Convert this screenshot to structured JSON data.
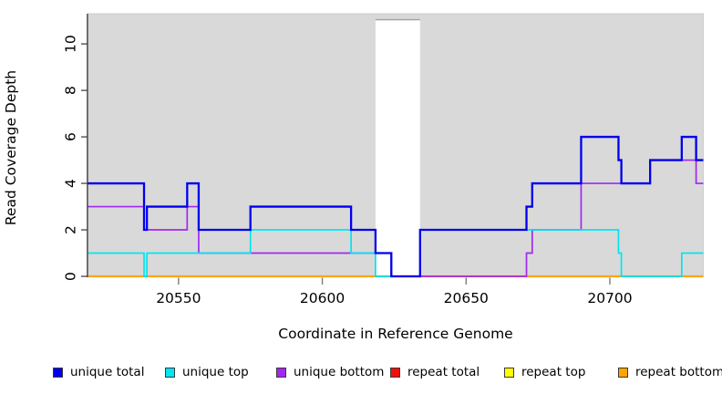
{
  "chart_data": {
    "type": "line",
    "subtype": "step-post",
    "title": "",
    "xlabel": "Coordinate in Reference Genome",
    "ylabel": "Read Coverage Depth",
    "xlim": [
      20518.5,
      20732.5
    ],
    "ylim": [
      0,
      11.3
    ],
    "x_ticks": [
      20550,
      20600,
      20650,
      20700
    ],
    "y_ticks": [
      0,
      2,
      4,
      6,
      8,
      10
    ],
    "grid": false,
    "plot_background": "#d9d9d9",
    "gap_region": {
      "from": 20618.5,
      "to": 20634,
      "top_value": 11,
      "color": "#ffffff"
    },
    "legend_position": "bottom",
    "series": [
      {
        "name": "unique total",
        "color": "#0000ee",
        "line_width": 2.3,
        "steps": [
          [
            20518.5,
            4
          ],
          [
            20538,
            2
          ],
          [
            20539,
            3
          ],
          [
            20553,
            4
          ],
          [
            20557,
            2
          ],
          [
            20575,
            3
          ],
          [
            20610,
            2
          ],
          [
            20618.5,
            1
          ],
          [
            20624,
            0
          ],
          [
            20634,
            2
          ],
          [
            20671,
            3
          ],
          [
            20673,
            4
          ],
          [
            20690,
            6
          ],
          [
            20703,
            5
          ],
          [
            20704,
            4
          ],
          [
            20714,
            5
          ],
          [
            20725,
            6
          ],
          [
            20730,
            5
          ]
        ]
      },
      {
        "name": "unique top",
        "color": "#00e5f0",
        "line_width": 1.7,
        "steps": [
          [
            20518.5,
            1
          ],
          [
            20538,
            0
          ],
          [
            20539,
            1
          ],
          [
            20575,
            2
          ],
          [
            20610,
            1
          ],
          [
            20618.5,
            0
          ],
          [
            20634,
            2
          ],
          [
            20703,
            1
          ],
          [
            20704,
            0
          ],
          [
            20725,
            1
          ]
        ]
      },
      {
        "name": "unique bottom",
        "color": "#a228f0",
        "line_width": 1.7,
        "steps": [
          [
            20518.5,
            3
          ],
          [
            20538,
            2
          ],
          [
            20553,
            3
          ],
          [
            20557,
            1
          ],
          [
            20624,
            0
          ],
          [
            20671,
            1
          ],
          [
            20673,
            2
          ],
          [
            20690,
            4
          ],
          [
            20714,
            5
          ],
          [
            20730,
            4
          ]
        ]
      },
      {
        "name": "repeat total",
        "color": "#f20d0d",
        "line_width": 1.5,
        "steps": [
          [
            20518.5,
            0
          ]
        ]
      },
      {
        "name": "repeat top",
        "color": "#ffff00",
        "line_width": 1.5,
        "steps": [
          [
            20518.5,
            0
          ]
        ]
      },
      {
        "name": "repeat bottom",
        "color": "#ffa500",
        "line_width": 2.3,
        "steps": [
          [
            20518.5,
            0
          ]
        ]
      }
    ]
  }
}
